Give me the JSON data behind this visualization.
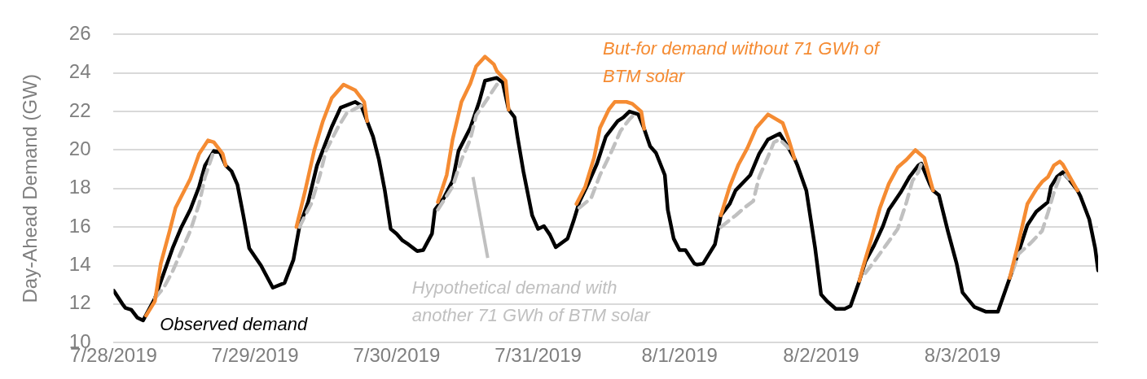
{
  "chart_data": {
    "type": "line",
    "ylabel": "Day-Ahead Demand (GW)",
    "ylim": [
      10,
      26
    ],
    "yticks": [
      10,
      12,
      14,
      16,
      18,
      20,
      22,
      24,
      26
    ],
    "xlim": [
      "2019-07-28T00:00",
      "2019-08-03T23:00"
    ],
    "xticks": [
      {
        "value": "2019-07-28",
        "label": "7/28/2019"
      },
      {
        "value": "2019-07-29",
        "label": "7/29/2019"
      },
      {
        "value": "2019-07-30",
        "label": "7/30/2019"
      },
      {
        "value": "2019-07-31",
        "label": "7/31/2019"
      },
      {
        "value": "2019-08-01",
        "label": "8/1/2019"
      },
      {
        "value": "2019-08-02",
        "label": "8/2/2019"
      },
      {
        "value": "2019-08-03",
        "label": "8/3/2019"
      }
    ],
    "grid": "y",
    "legend": false,
    "marker": "none",
    "series": [
      {
        "name": "But-for demand without 71 GWh of BTM solar",
        "color": "#f58b32",
        "line_style": "solid",
        "x": [
          "2019-07-28T05:30",
          "2019-07-28T07:00",
          "2019-07-28T08:00",
          "2019-07-28T09:30",
          "2019-07-28T10:30",
          "2019-07-28T12:00",
          "2019-07-28T13:00",
          "2019-07-28T14:30",
          "2019-07-28T16:00",
          "2019-07-28T17:00",
          "2019-07-28T18:30",
          "2019-07-28T19:00",
          "2019-07-29T00:00",
          "2019-07-29T07:00",
          "2019-07-29T08:30",
          "2019-07-29T10:00",
          "2019-07-29T11:30",
          "2019-07-29T13:00",
          "2019-07-29T15:00",
          "2019-07-29T17:00",
          "2019-07-29T18:30",
          "2019-07-29T19:00",
          "2019-07-30T00:00",
          "2019-07-30T07:00",
          "2019-07-30T08:30",
          "2019-07-30T09:30",
          "2019-07-30T11:00",
          "2019-07-30T12:30",
          "2019-07-30T13:30",
          "2019-07-30T15:00",
          "2019-07-30T16:30",
          "2019-07-30T17:00",
          "2019-07-30T18:30",
          "2019-07-30T19:00",
          "2019-07-31T00:00",
          "2019-07-31T06:30",
          "2019-07-31T08:00",
          "2019-07-31T09:30",
          "2019-07-31T10:30",
          "2019-07-31T12:00",
          "2019-07-31T13:00",
          "2019-07-31T15:00",
          "2019-07-31T16:00",
          "2019-07-31T17:30",
          "2019-07-31T18:00",
          "2019-08-01T00:00",
          "2019-08-01T07:00",
          "2019-08-01T08:30",
          "2019-08-01T10:00",
          "2019-08-01T11:30",
          "2019-08-01T13:00",
          "2019-08-01T15:00",
          "2019-08-01T17:30",
          "2019-08-01T18:30",
          "2019-08-01T19:30",
          "2019-08-02T00:00",
          "2019-08-02T06:30",
          "2019-08-02T07:00",
          "2019-08-02T08:30",
          "2019-08-02T10:00",
          "2019-08-02T11:30",
          "2019-08-02T13:00",
          "2019-08-02T14:30",
          "2019-08-02T16:00",
          "2019-08-02T17:30",
          "2019-08-02T19:00",
          "2019-08-03T00:00",
          "2019-08-03T08:00",
          "2019-08-03T09:30",
          "2019-08-03T11:00",
          "2019-08-03T12:30",
          "2019-08-03T13:30",
          "2019-08-03T14:30",
          "2019-08-03T15:30",
          "2019-08-03T16:30",
          "2019-08-03T17:00",
          "2019-08-03T19:30"
        ],
        "values": [
          11.4,
          12.15,
          14.1,
          15.8,
          17.0,
          17.9,
          18.5,
          19.8,
          20.5,
          20.4,
          19.8,
          19.2,
          null,
          16.0,
          17.9,
          19.95,
          21.5,
          22.7,
          23.4,
          23.1,
          22.5,
          21.5,
          null,
          17.3,
          18.7,
          20.55,
          22.5,
          23.45,
          24.35,
          24.85,
          24.45,
          24.1,
          23.6,
          22.1,
          null,
          17.2,
          18.1,
          19.6,
          21.15,
          22.1,
          22.5,
          22.5,
          22.4,
          22.0,
          21.1,
          null,
          16.6,
          18.1,
          19.25,
          20.1,
          21.15,
          21.85,
          21.4,
          20.55,
          19.55,
          null,
          13.2,
          13.8,
          15.35,
          17.0,
          18.25,
          19.1,
          19.5,
          20.0,
          19.6,
          17.9,
          null,
          13.35,
          15.2,
          17.2,
          17.95,
          18.35,
          18.6,
          19.2,
          19.4,
          19.25,
          17.9
        ]
      },
      {
        "name": "Hypothetical demand with another 71 GWh of BTM solar",
        "color": "#c0c0c0",
        "line_style": "dashed",
        "x": [
          "2019-07-28T07:00",
          "2019-07-28T08:30",
          "2019-07-28T10:00",
          "2019-07-28T11:30",
          "2019-07-28T13:00",
          "2019-07-28T14:30",
          "2019-07-28T15:30",
          "2019-07-28T16:30",
          "2019-07-28T17:00",
          "2019-07-29T00:00",
          "2019-07-29T07:30",
          "2019-07-29T09:30",
          "2019-07-29T11:00",
          "2019-07-29T12:00",
          "2019-07-29T14:00",
          "2019-07-29T15:30",
          "2019-07-29T17:00",
          "2019-07-29T18:00",
          "2019-07-30T00:00",
          "2019-07-30T07:00",
          "2019-07-30T09:30",
          "2019-07-30T11:00",
          "2019-07-30T12:30",
          "2019-07-30T13:30",
          "2019-07-30T15:30",
          "2019-07-30T17:00",
          "2019-07-30T18:00",
          "2019-07-31T00:00",
          "2019-07-31T07:00",
          "2019-07-31T09:00",
          "2019-07-31T10:30",
          "2019-07-31T12:30",
          "2019-07-31T14:00",
          "2019-07-31T15:30",
          "2019-07-31T16:30",
          "2019-08-01T00:00",
          "2019-08-01T07:00",
          "2019-08-01T09:30",
          "2019-08-01T11:00",
          "2019-08-01T12:30",
          "2019-08-01T13:30",
          "2019-08-01T15:00",
          "2019-08-01T16:00",
          "2019-08-01T17:00",
          "2019-08-01T18:30",
          "2019-08-02T00:00",
          "2019-08-02T07:30",
          "2019-08-02T09:00",
          "2019-08-02T11:00",
          "2019-08-02T13:00",
          "2019-08-02T14:30",
          "2019-08-02T15:30",
          "2019-08-02T16:30",
          "2019-08-02T17:00",
          "2019-08-03T00:00",
          "2019-08-03T08:30",
          "2019-08-03T09:30",
          "2019-08-03T11:30",
          "2019-08-03T13:30",
          "2019-08-03T14:30",
          "2019-08-03T15:30",
          "2019-08-03T16:30",
          "2019-08-03T17:30",
          "2019-08-03T18:00"
        ],
        "values": [
          12.3,
          12.85,
          13.7,
          14.75,
          15.8,
          17.2,
          18.6,
          19.5,
          19.95,
          null,
          16.0,
          17.2,
          18.7,
          19.95,
          21.15,
          21.9,
          22.15,
          22.3,
          null,
          16.9,
          18.1,
          19.5,
          20.55,
          21.8,
          22.7,
          23.4,
          23.5,
          null,
          17.0,
          17.5,
          18.7,
          19.95,
          21.0,
          21.6,
          21.9,
          null,
          16.0,
          16.6,
          17.0,
          17.35,
          18.6,
          19.65,
          20.4,
          20.55,
          20.1,
          null,
          13.6,
          14.2,
          15.05,
          15.9,
          17.3,
          18.4,
          18.85,
          19.3,
          null,
          13.7,
          14.6,
          15.15,
          15.8,
          16.75,
          17.8,
          18.6,
          18.7,
          18.5
        ]
      },
      {
        "name": "Observed demand",
        "color": "#000000",
        "line_style": "solid",
        "x": [
          "2019-07-28T00:00",
          "2019-07-28T01:30",
          "2019-07-28T02:00",
          "2019-07-28T03:00",
          "2019-07-28T04:00",
          "2019-07-28T05:00",
          "2019-07-28T07:00",
          "2019-07-28T08:30",
          "2019-07-28T10:00",
          "2019-07-28T11:30",
          "2019-07-28T13:00",
          "2019-07-28T14:30",
          "2019-07-28T15:30",
          "2019-07-28T17:00",
          "2019-07-28T18:00",
          "2019-07-28T19:00",
          "2019-07-28T20:00",
          "2019-07-28T21:00",
          "2019-07-28T22:00",
          "2019-07-28T23:00",
          "2019-07-29T01:00",
          "2019-07-29T03:00",
          "2019-07-29T05:00",
          "2019-07-29T06:30",
          "2019-07-29T07:30",
          "2019-07-29T09:00",
          "2019-07-29T10:30",
          "2019-07-29T13:00",
          "2019-07-29T14:30",
          "2019-07-29T17:00",
          "2019-07-29T18:00",
          "2019-07-29T19:00",
          "2019-07-29T20:00",
          "2019-07-29T21:00",
          "2019-07-29T22:00",
          "2019-07-29T23:00",
          "2019-07-30T00:00",
          "2019-07-30T01:00",
          "2019-07-30T02:00",
          "2019-07-30T03:30",
          "2019-07-30T04:30",
          "2019-07-30T06:00",
          "2019-07-30T06:30",
          "2019-07-30T08:00",
          "2019-07-30T09:30",
          "2019-07-30T10:30",
          "2019-07-30T12:30",
          "2019-07-30T14:00",
          "2019-07-30T15:00",
          "2019-07-30T17:00",
          "2019-07-30T18:00",
          "2019-07-30T19:00",
          "2019-07-30T20:00",
          "2019-07-30T20:30",
          "2019-07-30T21:30",
          "2019-07-30T23:00",
          "2019-07-31T00:00",
          "2019-07-31T01:00",
          "2019-07-31T02:00",
          "2019-07-31T03:00",
          "2019-07-31T05:00",
          "2019-07-31T06:00",
          "2019-07-31T07:00",
          "2019-07-31T08:30",
          "2019-07-31T10:00",
          "2019-07-31T11:30",
          "2019-07-31T13:30",
          "2019-07-31T14:30",
          "2019-07-31T15:30",
          "2019-07-31T17:00",
          "2019-07-31T18:00",
          "2019-07-31T19:00",
          "2019-07-31T20:00",
          "2019-07-31T21:30",
          "2019-07-31T22:00",
          "2019-07-31T23:00",
          "2019-08-01T00:00",
          "2019-08-01T01:00",
          "2019-08-01T02:30",
          "2019-08-01T03:00",
          "2019-08-01T04:00",
          "2019-08-01T06:00",
          "2019-08-01T07:00",
          "2019-08-01T08:30",
          "2019-08-01T09:30",
          "2019-08-01T12:00",
          "2019-08-01T13:30",
          "2019-08-01T15:00",
          "2019-08-01T17:00",
          "2019-08-01T18:30",
          "2019-08-01T19:30",
          "2019-08-01T20:00",
          "2019-08-01T21:30",
          "2019-08-01T23:00",
          "2019-08-02T00:00",
          "2019-08-02T01:00",
          "2019-08-02T02:30",
          "2019-08-02T04:00",
          "2019-08-02T05:00",
          "2019-08-02T06:30",
          "2019-08-02T07:30",
          "2019-08-02T09:00",
          "2019-08-02T10:30",
          "2019-08-02T11:30",
          "2019-08-02T13:30",
          "2019-08-02T15:00",
          "2019-08-02T16:30",
          "2019-08-02T17:00",
          "2019-08-02T18:30",
          "2019-08-02T19:00",
          "2019-08-02T20:00",
          "2019-08-02T21:30",
          "2019-08-02T23:00",
          "2019-08-03T00:00",
          "2019-08-03T02:00",
          "2019-08-03T04:00",
          "2019-08-03T06:00",
          "2019-08-03T08:00",
          "2019-08-03T09:30",
          "2019-08-03T11:00",
          "2019-08-03T12:30",
          "2019-08-03T14:30",
          "2019-08-03T15:00",
          "2019-08-03T16:00",
          "2019-08-03T17:00",
          "2019-08-03T18:00",
          "2019-08-03T19:30",
          "2019-08-03T20:00",
          "2019-08-03T21:30",
          "2019-08-03T22:30",
          "2019-08-03T23:00"
        ],
        "values": [
          12.7,
          12.0,
          11.8,
          11.7,
          11.3,
          11.15,
          12.3,
          13.6,
          14.9,
          16.0,
          16.9,
          18.1,
          19.2,
          19.95,
          19.9,
          19.2,
          18.9,
          18.2,
          16.6,
          14.9,
          14.0,
          12.85,
          13.1,
          14.3,
          16.0,
          17.3,
          19.2,
          21.2,
          22.2,
          22.5,
          22.3,
          21.5,
          20.7,
          19.5,
          17.9,
          15.9,
          15.65,
          15.3,
          15.1,
          14.75,
          14.8,
          15.65,
          16.9,
          17.5,
          18.4,
          19.95,
          21.15,
          22.5,
          23.6,
          23.75,
          23.5,
          22.1,
          21.7,
          20.7,
          18.9,
          16.6,
          15.9,
          16.05,
          15.6,
          14.95,
          15.4,
          16.3,
          17.3,
          18.25,
          19.3,
          20.7,
          21.5,
          21.7,
          22.0,
          21.85,
          21.1,
          20.2,
          19.85,
          18.7,
          16.9,
          15.4,
          14.8,
          14.8,
          14.1,
          14.05,
          14.1,
          15.1,
          16.6,
          17.2,
          17.9,
          18.7,
          19.8,
          20.55,
          20.85,
          20.1,
          19.55,
          19.2,
          17.9,
          14.9,
          12.5,
          12.15,
          11.75,
          11.75,
          11.9,
          13.2,
          14.2,
          15.05,
          16.05,
          16.9,
          17.8,
          18.6,
          19.2,
          19.3,
          18.2,
          17.9,
          17.65,
          15.8,
          14.1,
          12.6,
          11.85,
          11.6,
          11.6,
          13.35,
          14.7,
          16.1,
          16.8,
          17.3,
          18.1,
          18.6,
          18.85,
          18.5,
          17.9,
          17.6,
          16.4,
          14.9,
          13.75
        ]
      }
    ]
  }
}
